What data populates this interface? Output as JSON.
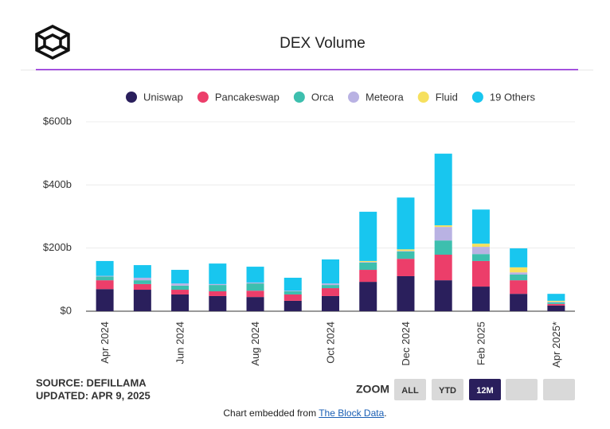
{
  "header": {
    "title": "DEX Volume"
  },
  "chart_data": {
    "type": "stacked_bar",
    "categories": [
      "Apr 2024",
      null,
      "Jun 2024",
      null,
      "Aug 2024",
      null,
      "Oct 2024",
      null,
      "Dec 2024",
      null,
      "Feb 2025",
      null,
      "Apr 2025*"
    ],
    "series": [
      {
        "name": "Uniswap",
        "color": "#2a1f5c",
        "values": [
          70,
          68,
          53,
          48,
          45,
          33,
          48,
          93,
          111,
          98,
          78,
          55,
          18
        ]
      },
      {
        "name": "Pancakeswap",
        "color": "#ec3e6a",
        "values": [
          28,
          18,
          15,
          15,
          20,
          20,
          25,
          38,
          55,
          81,
          81,
          43,
          5
        ]
      },
      {
        "name": "Orca",
        "color": "#3dbfae",
        "values": [
          12,
          12,
          13,
          20,
          23,
          10,
          10,
          23,
          23,
          45,
          22,
          18,
          5
        ]
      },
      {
        "name": "Meteora",
        "color": "#b9b2e3",
        "values": [
          2,
          8,
          7,
          3,
          3,
          2,
          5,
          2,
          2,
          43,
          23,
          7,
          2
        ]
      },
      {
        "name": "Fluid",
        "color": "#f6e05e",
        "values": [
          0,
          0,
          0,
          0,
          0,
          0,
          0,
          3,
          5,
          5,
          10,
          16,
          3
        ]
      },
      {
        "name": "19 Others",
        "color": "#18c6ef",
        "values": [
          47,
          40,
          43,
          65,
          50,
          41,
          76,
          156,
          164,
          227,
          108,
          60,
          22
        ]
      }
    ],
    "ylim": [
      0,
      600
    ],
    "yticks": [
      {
        "value": 0,
        "label": "$0"
      },
      {
        "value": 200,
        "label": "$200b"
      },
      {
        "value": 400,
        "label": "$400b"
      },
      {
        "value": 600,
        "label": "$600b"
      }
    ],
    "grid": true,
    "legend": "top"
  },
  "footer": {
    "source": "SOURCE: DEFILLAMA",
    "updated": "UPDATED: APR 9, 2025",
    "zoom": {
      "label": "ZOOM",
      "buttons": [
        "ALL",
        "YTD",
        "12M"
      ],
      "active": 2
    },
    "embed": {
      "prefix": "Chart embedded from ",
      "link": "The Block Data",
      "suffix": "."
    }
  }
}
